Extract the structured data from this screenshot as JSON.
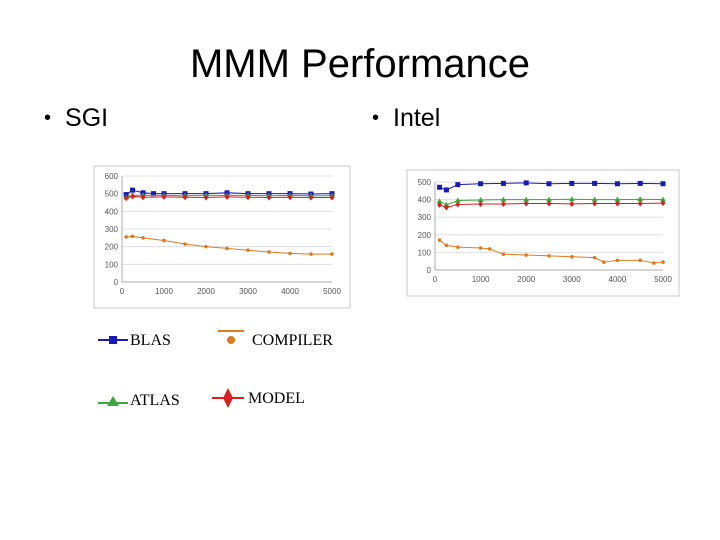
{
  "slide": {
    "title": "MMM Performance",
    "bullets": [
      "SGI",
      "Intel"
    ],
    "bullet_symbol": "•"
  },
  "legend": [
    {
      "label": "BLAS",
      "color": "#1a1ab8",
      "marker": "square-icon"
    },
    {
      "label": "COMPILER",
      "color": "#e07b1d",
      "marker": "circle-icon"
    },
    {
      "label": "ATLAS",
      "color": "#3aa83a",
      "marker": "triangle-icon"
    },
    {
      "label": "MODEL",
      "color": "#d92020",
      "marker": "diamond-icon"
    }
  ],
  "chart_data": [
    {
      "type": "line",
      "name": "SGI",
      "xlim": [
        0,
        5000
      ],
      "ylim": [
        0,
        600
      ],
      "xticks": [
        0,
        1000,
        2000,
        3000,
        4000,
        5000
      ],
      "yticks": [
        0,
        100,
        200,
        300,
        400,
        500,
        600
      ],
      "grid": true,
      "series": [
        {
          "name": "BLAS",
          "color": "#1a1ab8",
          "marker": "square",
          "x": [
            100,
            250,
            500,
            750,
            1000,
            1500,
            2000,
            2500,
            3000,
            3500,
            4000,
            4500,
            5000
          ],
          "y": [
            495,
            520,
            505,
            500,
            500,
            500,
            500,
            505,
            500,
            500,
            500,
            498,
            500
          ]
        },
        {
          "name": "COMPILER",
          "color": "#e07b1d",
          "marker": "circle",
          "x": [
            100,
            250,
            500,
            1000,
            1500,
            2000,
            2500,
            3000,
            3500,
            4000,
            4500,
            5000
          ],
          "y": [
            255,
            258,
            250,
            235,
            215,
            200,
            190,
            180,
            170,
            162,
            158,
            158
          ]
        },
        {
          "name": "ATLAS",
          "color": "#3aa83a",
          "marker": "triangle",
          "x": [
            100,
            250,
            500,
            1000,
            1500,
            2000,
            2500,
            3000,
            3500,
            4000,
            4500,
            5000
          ],
          "y": [
            480,
            490,
            490,
            490,
            488,
            490,
            490,
            490,
            488,
            490,
            488,
            488
          ]
        },
        {
          "name": "MODEL",
          "color": "#d92020",
          "marker": "diamond",
          "x": [
            100,
            250,
            500,
            1000,
            1500,
            2000,
            2500,
            3000,
            3500,
            4000,
            4500,
            5000
          ],
          "y": [
            475,
            485,
            480,
            482,
            480,
            478,
            482,
            480,
            478,
            480,
            478,
            478
          ]
        }
      ]
    },
    {
      "type": "line",
      "name": "Intel",
      "xlim": [
        0,
        5000
      ],
      "ylim": [
        0,
        500
      ],
      "xticks": [
        0,
        1000,
        2000,
        3000,
        4000,
        5000
      ],
      "yticks": [
        0,
        100,
        200,
        300,
        400,
        500
      ],
      "grid": true,
      "series": [
        {
          "name": "BLAS",
          "color": "#1a1ab8",
          "marker": "square",
          "x": [
            100,
            250,
            500,
            1000,
            1500,
            2000,
            2500,
            3000,
            3500,
            4000,
            4500,
            5000
          ],
          "y": [
            470,
            455,
            485,
            490,
            492,
            495,
            490,
            492,
            492,
            490,
            492,
            490
          ]
        },
        {
          "name": "COMPILER",
          "color": "#e07b1d",
          "marker": "circle",
          "x": [
            100,
            250,
            500,
            1000,
            1200,
            1500,
            2000,
            2500,
            3000,
            3500,
            3700,
            4000,
            4500,
            4800,
            5000
          ],
          "y": [
            170,
            140,
            130,
            125,
            120,
            90,
            85,
            80,
            75,
            70,
            45,
            55,
            55,
            40,
            45
          ]
        },
        {
          "name": "ATLAS",
          "color": "#3aa83a",
          "marker": "triangle",
          "x": [
            100,
            250,
            500,
            1000,
            1500,
            2000,
            2500,
            3000,
            3500,
            4000,
            4500,
            5000
          ],
          "y": [
            390,
            370,
            395,
            398,
            400,
            400,
            400,
            402,
            400,
            400,
            402,
            400
          ]
        },
        {
          "name": "MODEL",
          "color": "#d92020",
          "marker": "diamond",
          "x": [
            100,
            250,
            500,
            1000,
            1500,
            2000,
            2500,
            3000,
            3500,
            4000,
            4500,
            5000
          ],
          "y": [
            370,
            355,
            372,
            375,
            375,
            378,
            378,
            376,
            378,
            378,
            378,
            380
          ]
        }
      ]
    }
  ]
}
